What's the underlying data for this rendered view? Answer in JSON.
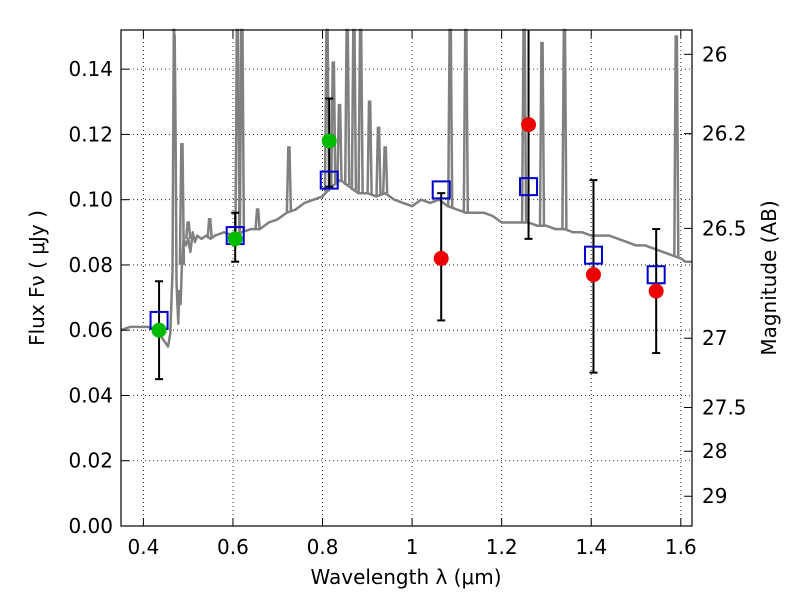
{
  "chart_data": {
    "type": "scatter",
    "xlabel": "Wavelength  λ (μm)",
    "ylabel": "Flux  Fν  ( μJy )",
    "y2label": "Magnitude (AB)",
    "xlim": [
      0.35,
      1.625
    ],
    "ylim": [
      0.0,
      0.152
    ],
    "grid": true,
    "x_ticks": [
      0.4,
      0.6,
      0.8,
      1.0,
      1.2,
      1.4,
      1.6
    ],
    "x_tick_labels": [
      "0.4",
      "0.6",
      "0.8",
      "1",
      "1.2",
      "1.4",
      "1.6"
    ],
    "y_ticks": [
      0.0,
      0.02,
      0.04,
      0.06,
      0.08,
      0.1,
      0.12,
      0.14
    ],
    "y_tick_labels": [
      "0.00",
      "0.02",
      "0.04",
      "0.06",
      "0.08",
      "0.10",
      "0.12",
      "0.14"
    ],
    "y2_ticks": [
      {
        "label": "26",
        "mag": 26.0
      },
      {
        "label": "26.2",
        "mag": 26.2
      },
      {
        "label": "26.5",
        "mag": 26.5
      },
      {
        "label": "27",
        "mag": 27.0
      },
      {
        "label": "27.5",
        "mag": 27.5
      },
      {
        "label": "28",
        "mag": 28.0
      },
      {
        "label": "29",
        "mag": 29.0
      }
    ],
    "colors": {
      "model": "#808080",
      "green_points": "#00bb00",
      "red_points": "#ee0000",
      "model_boxes": "#0000cc",
      "error_bars": "#000000"
    },
    "model_spectrum": {
      "x": [
        0.35,
        0.37,
        0.39,
        0.41,
        0.43,
        0.445,
        0.455,
        0.46,
        0.465,
        0.468,
        0.47,
        0.472,
        0.474,
        0.476,
        0.478,
        0.48,
        0.483,
        0.486,
        0.49,
        0.495,
        0.5,
        0.505,
        0.51,
        0.515,
        0.52,
        0.53,
        0.54,
        0.55,
        0.56,
        0.58,
        0.6,
        0.62,
        0.64,
        0.66,
        0.68,
        0.7,
        0.72,
        0.74,
        0.76,
        0.78,
        0.8,
        0.82,
        0.84,
        0.86,
        0.88,
        0.9,
        0.92,
        0.94,
        0.96,
        0.98,
        1.0,
        1.02,
        1.04,
        1.06,
        1.08,
        1.1,
        1.12,
        1.14,
        1.16,
        1.18,
        1.2,
        1.22,
        1.24,
        1.26,
        1.28,
        1.3,
        1.32,
        1.34,
        1.36,
        1.38,
        1.4,
        1.42,
        1.44,
        1.46,
        1.48,
        1.5,
        1.52,
        1.54,
        1.56,
        1.58,
        1.6,
        1.61,
        1.625
      ],
      "y": [
        0.06,
        0.061,
        0.061,
        0.061,
        0.06,
        0.057,
        0.055,
        0.059,
        0.078,
        0.152,
        0.15,
        0.12,
        0.075,
        0.068,
        0.062,
        0.072,
        0.068,
        0.08,
        0.088,
        0.086,
        0.088,
        0.084,
        0.09,
        0.087,
        0.089,
        0.088,
        0.089,
        0.088,
        0.089,
        0.09,
        0.089,
        0.09,
        0.091,
        0.091,
        0.093,
        0.094,
        0.096,
        0.097,
        0.099,
        0.1,
        0.101,
        0.104,
        0.106,
        0.104,
        0.102,
        0.102,
        0.101,
        0.102,
        0.1,
        0.099,
        0.098,
        0.1,
        0.099,
        0.1,
        0.098,
        0.097,
        0.096,
        0.096,
        0.096,
        0.095,
        0.093,
        0.093,
        0.093,
        0.093,
        0.092,
        0.092,
        0.091,
        0.091,
        0.09,
        0.09,
        0.089,
        0.089,
        0.089,
        0.088,
        0.087,
        0.086,
        0.086,
        0.085,
        0.084,
        0.083,
        0.082,
        0.081,
        0.081
      ],
      "emission_lines": [
        {
          "x": 0.468,
          "peak": 0.152
        },
        {
          "x": 0.486,
          "peak": 0.117
        },
        {
          "x": 0.5,
          "peak": 0.093
        },
        {
          "x": 0.548,
          "peak": 0.094
        },
        {
          "x": 0.61,
          "peak": 0.152
        },
        {
          "x": 0.62,
          "peak": 0.152
        },
        {
          "x": 0.655,
          "peak": 0.097
        },
        {
          "x": 0.725,
          "peak": 0.116
        },
        {
          "x": 0.81,
          "peak": 0.152
        },
        {
          "x": 0.824,
          "peak": 0.142
        },
        {
          "x": 0.838,
          "peak": 0.129
        },
        {
          "x": 0.855,
          "peak": 0.152
        },
        {
          "x": 0.87,
          "peak": 0.152
        },
        {
          "x": 0.885,
          "peak": 0.152
        },
        {
          "x": 0.905,
          "peak": 0.13
        },
        {
          "x": 0.925,
          "peak": 0.122
        },
        {
          "x": 0.94,
          "peak": 0.116
        },
        {
          "x": 1.085,
          "peak": 0.152
        },
        {
          "x": 1.12,
          "peak": 0.152
        },
        {
          "x": 1.25,
          "peak": 0.152
        },
        {
          "x": 1.29,
          "peak": 0.148
        },
        {
          "x": 1.34,
          "peak": 0.152
        },
        {
          "x": 1.59,
          "peak": 0.15
        }
      ]
    },
    "observed_green": [
      {
        "x": 0.435,
        "y": 0.06,
        "err_low": 0.045,
        "err_high": 0.075
      },
      {
        "x": 0.605,
        "y": 0.088,
        "err_low": 0.081,
        "err_high": 0.096
      },
      {
        "x": 0.815,
        "y": 0.118,
        "err_low": 0.104,
        "err_high": 0.131
      }
    ],
    "observed_red": [
      {
        "x": 1.065,
        "y": 0.082,
        "err_low": 0.063,
        "err_high": 0.102
      },
      {
        "x": 1.26,
        "y": 0.123,
        "err_low": 0.088,
        "err_high": 0.152
      },
      {
        "x": 1.405,
        "y": 0.077,
        "err_low": 0.047,
        "err_high": 0.106
      },
      {
        "x": 1.545,
        "y": 0.072,
        "err_low": 0.053,
        "err_high": 0.091
      }
    ],
    "model_boxes": [
      {
        "x": 0.435,
        "y": 0.063
      },
      {
        "x": 0.605,
        "y": 0.089
      },
      {
        "x": 0.815,
        "y": 0.106
      },
      {
        "x": 1.065,
        "y": 0.103
      },
      {
        "x": 1.26,
        "y": 0.104
      },
      {
        "x": 1.405,
        "y": 0.083
      },
      {
        "x": 1.545,
        "y": 0.077
      }
    ]
  }
}
